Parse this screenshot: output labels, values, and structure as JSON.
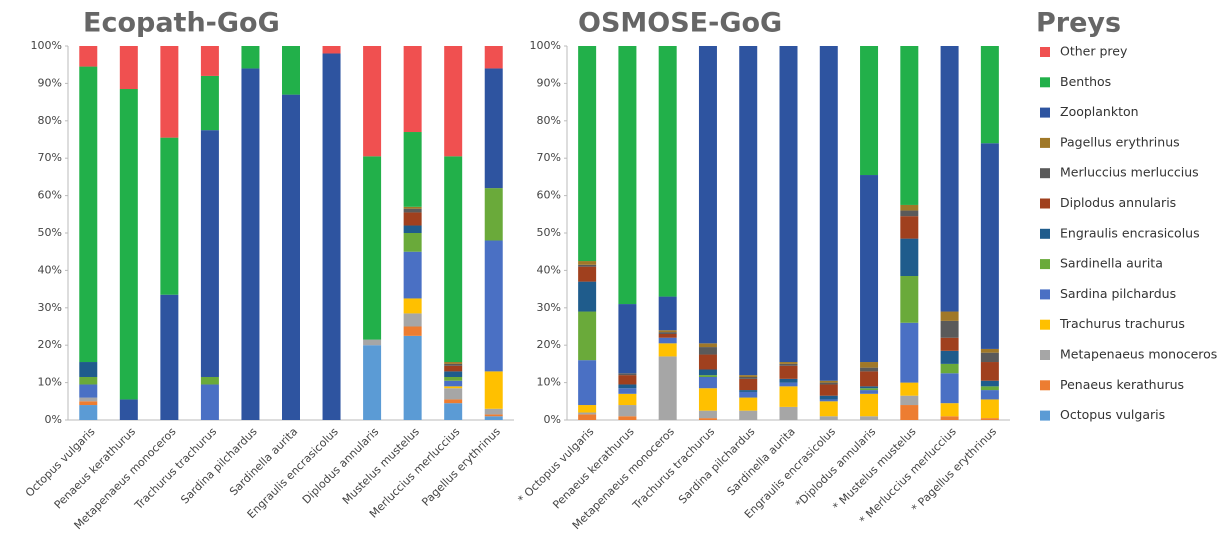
{
  "chart_data": [
    {
      "type": "stacked_bar",
      "title": "Ecopath-GoG",
      "categories": [
        "Octopus vulgaris",
        "Penaeus kerathurus",
        "Metapenaeus monoceros",
        "Trachurus trachurus",
        "Sardina pilchardus",
        "Sardinella aurita",
        "Engraulis encrasicolus",
        "Diplodus annularis",
        "Mustelus mustelus",
        "Merluccius merluccius",
        "Pagellus erythrinus"
      ],
      "ylim": [
        0,
        100
      ],
      "yticks": [
        {
          "value": 0,
          "label": "0%"
        },
        {
          "value": 10,
          "label": "10%"
        },
        {
          "value": 20,
          "label": "20%"
        },
        {
          "value": 30,
          "label": "30%"
        },
        {
          "value": 40,
          "label": "40%"
        },
        {
          "value": 50,
          "label": "50%"
        },
        {
          "value": 60,
          "label": "60%"
        },
        {
          "value": 70,
          "label": "70%"
        },
        {
          "value": 80,
          "label": "80%"
        },
        {
          "value": 90,
          "label": "90%"
        },
        {
          "value": 100,
          "label": "100%"
        }
      ],
      "series": [
        {
          "name": "Other prey",
          "color": "#f05050",
          "values": [
            5.5,
            11.5,
            24.5,
            8,
            0,
            0,
            2,
            29.5,
            23,
            29.5,
            6
          ]
        },
        {
          "name": "Benthos",
          "color": "#22b04a",
          "values": [
            79,
            83,
            42,
            14.5,
            6,
            13,
            0,
            49,
            20,
            55,
            0
          ]
        },
        {
          "name": "Zooplankton",
          "color": "#2e54a0",
          "values": [
            0,
            5.5,
            33.5,
            66,
            94,
            87,
            98,
            0,
            0,
            0,
            32
          ]
        },
        {
          "name": "Pagellus erythrinus",
          "color": "#a07828",
          "values": [
            0,
            0,
            0,
            0,
            0,
            0,
            0,
            0,
            0.5,
            0.5,
            0
          ]
        },
        {
          "name": "Merluccius merluccius",
          "color": "#5a5a5a",
          "values": [
            0,
            0,
            0,
            0,
            0,
            0,
            0,
            0,
            1,
            0.5,
            0
          ]
        },
        {
          "name": "Diplodus annularis",
          "color": "#a0401e",
          "values": [
            0,
            0,
            0,
            0,
            0,
            0,
            0,
            0,
            3.5,
            1.5,
            0
          ]
        },
        {
          "name": "Engraulis encrasicolus",
          "color": "#1f5c8c",
          "values": [
            4,
            0,
            0,
            0,
            0,
            0,
            0,
            0,
            2,
            1.5,
            0
          ]
        },
        {
          "name": "Sardinella aurita",
          "color": "#6aaa3a",
          "values": [
            2,
            0,
            0,
            2,
            0,
            0,
            0,
            0,
            5,
            1,
            14
          ]
        },
        {
          "name": "Sardina pilchardus",
          "color": "#4a70c4",
          "values": [
            3.5,
            0,
            0,
            9.5,
            0,
            0,
            0,
            0,
            12.5,
            1.5,
            35
          ]
        },
        {
          "name": "Trachurus trachurus",
          "color": "#ffc000",
          "values": [
            0,
            0,
            0,
            0,
            0,
            0,
            0,
            0,
            4,
            0.5,
            10
          ]
        },
        {
          "name": "Metapenaeus monoceros",
          "color": "#a6a6a6",
          "values": [
            1,
            0,
            0,
            0,
            0,
            0,
            0,
            1.5,
            3.5,
            3,
            1.5
          ]
        },
        {
          "name": "Penaeus kerathurus",
          "color": "#ed7d31",
          "values": [
            1,
            0,
            0,
            0,
            0,
            0,
            0,
            0,
            2.5,
            1,
            0.5
          ]
        },
        {
          "name": "Octopus vulgaris",
          "color": "#5b9bd5",
          "values": [
            4,
            0,
            0,
            0,
            0,
            0,
            0,
            20,
            22.5,
            4.5,
            1
          ]
        }
      ]
    },
    {
      "type": "stacked_bar",
      "title": "OSMOSE-GoG",
      "legend_title": "Preys",
      "categories": [
        "* Octopus vulgaris",
        "Penaeus kerathurus",
        "Metapenaeus monoceros",
        "Trachurus trachurus",
        "Sardina pilchardus",
        "Sardinella aurita",
        "Engraulis encrasicolus",
        "*Diplodus annularis",
        "* Mustelus mustelus",
        "* Merluccius merluccius",
        "* Pagellus erythrinus"
      ],
      "ylim": [
        0,
        100
      ],
      "yticks": [
        {
          "value": 0,
          "label": "0%"
        },
        {
          "value": 10,
          "label": "10%"
        },
        {
          "value": 20,
          "label": "20%"
        },
        {
          "value": 30,
          "label": "30%"
        },
        {
          "value": 40,
          "label": "40%"
        },
        {
          "value": 50,
          "label": "50%"
        },
        {
          "value": 60,
          "label": "60%"
        },
        {
          "value": 70,
          "label": "70%"
        },
        {
          "value": 80,
          "label": "80%"
        },
        {
          "value": 90,
          "label": "90%"
        },
        {
          "value": 100,
          "label": "100%"
        }
      ],
      "series": [
        {
          "name": "Other prey",
          "color": "#f05050",
          "values": [
            0,
            0,
            0,
            0,
            0,
            0,
            0,
            0,
            0,
            0,
            0
          ]
        },
        {
          "name": "Benthos",
          "color": "#22b04a",
          "values": [
            57.5,
            69,
            67,
            0,
            0,
            0,
            0,
            34.5,
            42.5,
            0,
            26
          ]
        },
        {
          "name": "Zooplankton",
          "color": "#2e54a0",
          "values": [
            0,
            18.5,
            9,
            79.5,
            88,
            84.5,
            89.5,
            50,
            0,
            71,
            55
          ]
        },
        {
          "name": "Pagellus erythrinus",
          "color": "#a07828",
          "values": [
            1,
            0,
            0.5,
            1,
            0.5,
            0.5,
            0.5,
            1.5,
            1.5,
            2.5,
            1
          ]
        },
        {
          "name": "Merluccius merluccius",
          "color": "#5a5a5a",
          "values": [
            0.5,
            0.5,
            0.5,
            2,
            0.5,
            0.5,
            0.5,
            1,
            1.5,
            4.5,
            2.5
          ]
        },
        {
          "name": "Diplodus annularis",
          "color": "#a0401e",
          "values": [
            4,
            2.5,
            1,
            4,
            3,
            3.5,
            3,
            4,
            6,
            3.5,
            5
          ]
        },
        {
          "name": "Engraulis encrasicolus",
          "color": "#1f5c8c",
          "values": [
            8,
            1,
            0,
            1.5,
            0.5,
            1,
            1,
            0.5,
            10,
            3.5,
            1.5
          ]
        },
        {
          "name": "Sardinella aurita",
          "color": "#6aaa3a",
          "values": [
            13,
            0,
            0,
            0.5,
            0,
            0,
            0,
            0.5,
            12.5,
            2.5,
            1
          ]
        },
        {
          "name": "Sardina pilchardus",
          "color": "#4a70c4",
          "values": [
            12,
            1.5,
            1.5,
            3,
            1.5,
            1,
            0.5,
            1,
            16,
            8,
            2.5
          ]
        },
        {
          "name": "Trachurus trachurus",
          "color": "#ffc000",
          "values": [
            2,
            3,
            3.5,
            6,
            3.5,
            5.5,
            4,
            6,
            3.5,
            3.5,
            5
          ]
        },
        {
          "name": "Metapenaeus monoceros",
          "color": "#a6a6a6",
          "values": [
            0.5,
            3,
            17,
            2,
            2.5,
            3.5,
            1,
            1,
            2.5,
            0,
            0
          ]
        },
        {
          "name": "Penaeus kerathurus",
          "color": "#ed7d31",
          "values": [
            1.5,
            1,
            0,
            0.5,
            0,
            0,
            0,
            0,
            4,
            1,
            0.5
          ]
        },
        {
          "name": "Octopus vulgaris",
          "color": "#5b9bd5",
          "values": [
            0,
            0,
            0,
            0,
            0,
            0,
            0,
            0,
            0,
            0,
            0
          ]
        }
      ]
    }
  ]
}
